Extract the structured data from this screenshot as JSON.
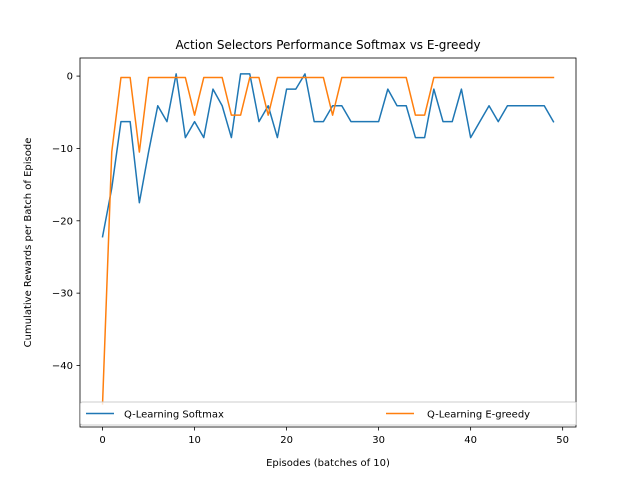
{
  "chart_data": {
    "type": "line",
    "title": "Action Selectors Performance Softmax vs E-greedy",
    "xlabel": "Episodes (batches of 10)",
    "ylabel": "Cumulative Rewards per Batch of Episode",
    "xlim": [
      -2.45,
      51.45
    ],
    "ylim": [
      -48.5,
      2.5
    ],
    "xticks": [
      0,
      10,
      20,
      30,
      40,
      50
    ],
    "yticks": [
      0,
      -10,
      -20,
      -30,
      -40
    ],
    "xtick_labels": [
      "0",
      "10",
      "20",
      "30",
      "40",
      "50"
    ],
    "ytick_labels": [
      "0",
      "−10",
      "−20",
      "−30",
      "−40"
    ],
    "grid": false,
    "legend_position": "lower center",
    "x": [
      0,
      1,
      2,
      3,
      4,
      5,
      6,
      7,
      8,
      9,
      10,
      11,
      12,
      13,
      14,
      15,
      16,
      17,
      18,
      19,
      20,
      21,
      22,
      23,
      24,
      25,
      26,
      27,
      28,
      29,
      30,
      31,
      32,
      33,
      34,
      35,
      36,
      37,
      38,
      39,
      40,
      41,
      42,
      43,
      44,
      45,
      46,
      47,
      48,
      49
    ],
    "series": [
      {
        "name": "Q-Learning Softmax",
        "color": "#1f77b4",
        "values": [
          -22.2,
          -15.5,
          -6.3,
          -6.3,
          -17.5,
          -10.5,
          -4.1,
          -6.3,
          0.3,
          -8.5,
          -6.3,
          -8.5,
          -1.8,
          -4.1,
          -8.5,
          0.3,
          0.3,
          -6.3,
          -4.1,
          -8.5,
          -1.8,
          -1.8,
          0.3,
          -6.3,
          -6.3,
          -4.1,
          -4.1,
          -6.3,
          -6.3,
          -6.3,
          -6.3,
          -1.8,
          -4.1,
          -4.1,
          -8.5,
          -8.5,
          -1.8,
          -6.3,
          -6.3,
          -1.8,
          -8.5,
          -6.3,
          -4.1,
          -6.3,
          -4.1,
          -4.1,
          -4.1,
          -4.1,
          -4.1,
          -6.3
        ]
      },
      {
        "name": "Q-Learning E-greedy",
        "color": "#ff7f0e",
        "values": [
          -45.3,
          -10.5,
          -0.2,
          -0.2,
          -10.5,
          -0.2,
          -0.2,
          -0.2,
          -0.2,
          -0.2,
          -5.4,
          -0.2,
          -0.2,
          -0.2,
          -5.4,
          -5.4,
          -0.2,
          -0.2,
          -5.4,
          -0.2,
          -0.2,
          -0.2,
          -0.2,
          -0.2,
          -0.2,
          -5.4,
          -0.2,
          -0.2,
          -0.2,
          -0.2,
          -0.2,
          -0.2,
          -0.2,
          -0.2,
          -5.4,
          -5.4,
          -0.2,
          -0.2,
          -0.2,
          -0.2,
          -0.2,
          -0.2,
          -0.2,
          -0.2,
          -0.2,
          -0.2,
          -0.2,
          -0.2,
          -0.2,
          -0.2
        ]
      }
    ]
  }
}
